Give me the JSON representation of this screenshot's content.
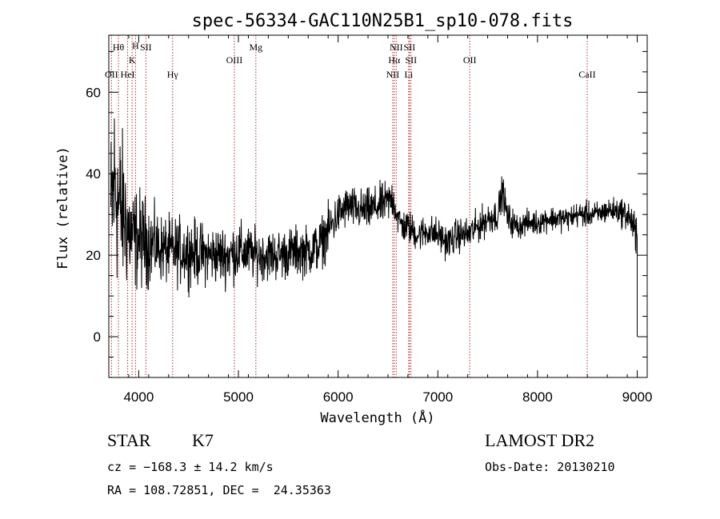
{
  "chart_data": {
    "type": "line",
    "title": "spec-56334-GAC110N25B1_sp10-078.fits",
    "xlabel": "Wavelength (Å)",
    "ylabel": "Flux (relative)",
    "xlim": [
      3700,
      9100
    ],
    "ylim": [
      -10,
      74
    ],
    "x_ticks": [
      4000,
      5000,
      6000,
      7000,
      8000,
      9000
    ],
    "y_ticks": [
      0,
      20,
      40,
      60
    ],
    "grid": false,
    "line_color": "#000000",
    "marker_color": "#b03030",
    "spectral_lines": [
      {
        "label": "OII",
        "wavelength": 3727,
        "row": 3
      },
      {
        "label": "Hθ",
        "wavelength": 3797,
        "row": 1
      },
      {
        "label": "HeI",
        "wavelength": 3889,
        "row": 3
      },
      {
        "label": "K",
        "wavelength": 3934,
        "row": 2
      },
      {
        "label": "H",
        "wavelength": 3968,
        "row": 0
      },
      {
        "label": "SII",
        "wavelength": 4072,
        "row": 1
      },
      {
        "label": "Hγ",
        "wavelength": 4340,
        "row": 3
      },
      {
        "label": "OIII",
        "wavelength": 4959,
        "row": 2
      },
      {
        "label": "Mg",
        "wavelength": 5175,
        "row": 1
      },
      {
        "label": "NII",
        "wavelength": 6548,
        "row": 3
      },
      {
        "label": "NII",
        "wavelength": 6583,
        "row": 1
      },
      {
        "label": "Hα",
        "wavelength": 6563,
        "row": 2
      },
      {
        "label": "SII",
        "wavelength": 6716,
        "row": 1
      },
      {
        "label": "SII",
        "wavelength": 6731,
        "row": 2
      },
      {
        "label": "Li",
        "wavelength": 6708,
        "row": 3
      },
      {
        "label": "OII",
        "wavelength": 7320,
        "row": 2
      },
      {
        "label": "CaII",
        "wavelength": 8498,
        "row": 3
      }
    ],
    "spectrum_anchors": {
      "x": [
        3720,
        3760,
        3800,
        3850,
        3900,
        3950,
        4000,
        4100,
        4200,
        4300,
        4400,
        4500,
        4700,
        4900,
        5000,
        5200,
        5400,
        5600,
        5700,
        5800,
        5900,
        6000,
        6100,
        6200,
        6300,
        6400,
        6500,
        6550,
        6600,
        6650,
        6700,
        6800,
        6900,
        7000,
        7100,
        7200,
        7300,
        7400,
        7500,
        7600,
        7650,
        7700,
        7800,
        7900,
        8000,
        8100,
        8200,
        8300,
        8400,
        8500,
        8600,
        8700,
        8800,
        8900,
        8950,
        9000
      ],
      "y": [
        30,
        38,
        32,
        30,
        26,
        24,
        24,
        23,
        22,
        21,
        21,
        21,
        20,
        20,
        21,
        20,
        20,
        21,
        21,
        22,
        26,
        30,
        32,
        31,
        31,
        32,
        33,
        34,
        29,
        27,
        27,
        25,
        26,
        25,
        23,
        25,
        25,
        27,
        29,
        30,
        36,
        29,
        27,
        28,
        28,
        29,
        29,
        29,
        30,
        30,
        30,
        31,
        31,
        30,
        28,
        22
      ],
      "noise": [
        10,
        12,
        10,
        9,
        7,
        6,
        6,
        5,
        4,
        4,
        4,
        4,
        3.5,
        3.5,
        3.5,
        3,
        3,
        3,
        3,
        3,
        3,
        2.5,
        2.5,
        2.5,
        2.5,
        2.5,
        2.5,
        2.5,
        2,
        2,
        2,
        2,
        2,
        2,
        2,
        2,
        2,
        2,
        2,
        2,
        2,
        2,
        1.5,
        1.5,
        1.5,
        1.5,
        1.5,
        1.5,
        1.5,
        1.5,
        1.5,
        1.5,
        1.5,
        2,
        2,
        4
      ]
    }
  },
  "info": {
    "class_label": "STAR",
    "subclass_label": "K7",
    "redshift_text": "cz = −168.3 ± 14.2 km/s",
    "coords_text": "RA = 108.72851, DEC =  24.35363",
    "survey_label": "LAMOST DR2",
    "obs_date_text": "Obs-Date: 20130210"
  }
}
